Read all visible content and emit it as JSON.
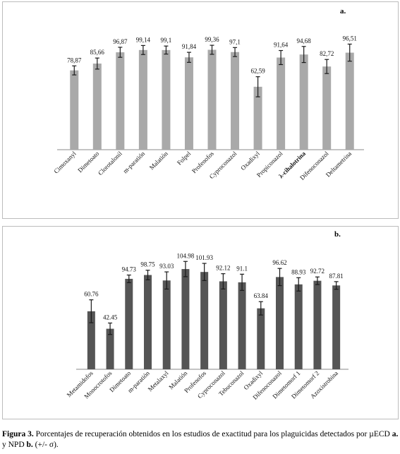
{
  "chart_data": [
    {
      "type": "bar",
      "panel_label": "a.",
      "categories": [
        "Cimoxanyl",
        "Dimetoato",
        "Clorotalonil",
        "m-paratión",
        "Malatión",
        "Folpel",
        "Profenofos",
        "Cyproconazol",
        "Oxadixyl",
        "Propiconazol",
        "λ-cihalotrina",
        "Difenoconazol",
        "Deltametrina"
      ],
      "values": [
        78.87,
        85.66,
        96.87,
        99.14,
        99.1,
        91.84,
        99.36,
        97.1,
        62.59,
        91.64,
        94.68,
        82.72,
        96.51
      ],
      "value_labels": [
        "78,87",
        "85,66",
        "96,87",
        "99,14",
        "99,1",
        "91,84",
        "99,36",
        "97,1",
        "62,59",
        "91,64",
        "94,68",
        "82,72",
        "96,51"
      ],
      "errors": [
        4.5,
        5.5,
        5.0,
        4.5,
        4.0,
        5.0,
        4.5,
        4.5,
        10.0,
        7.0,
        8.0,
        7.0,
        8.5
      ],
      "bold_category": "λ-cihalotrina",
      "ylim": [
        0,
        125
      ],
      "bar_color": "#a9a9a9",
      "axis_color": "#8a8a8a",
      "error_color": "#1a1a1a",
      "grid": false
    },
    {
      "type": "bar",
      "panel_label": "b.",
      "categories": [
        "Metamidofos",
        "Monocrotofos",
        "Dimetoato",
        "m-paratión",
        "Metalaxyl",
        "Malatión",
        "Profenofos",
        "Cyproconazol",
        "Tebuconazol",
        "Oxadixyl",
        "Difenoconazol",
        "Dimetomorf 1",
        "Dimetomorf 2",
        "Azoxistrobina"
      ],
      "values": [
        60.76,
        42.45,
        94.73,
        98.75,
        93.03,
        104.98,
        101.93,
        92.12,
        91.1,
        63.84,
        96.62,
        88.93,
        92.72,
        87.81
      ],
      "value_labels": [
        "60.76",
        "42.45",
        "94.73",
        "98.75",
        "93.03",
        "104.98",
        "101.93",
        "92.12",
        "91.1",
        "63.84",
        "96.62",
        "88.93",
        "92.72",
        "87.81"
      ],
      "errors": [
        12.0,
        6.0,
        4.0,
        5.0,
        9.0,
        8.0,
        9.0,
        8.0,
        8.5,
        7.0,
        9.0,
        7.0,
        4.0,
        4.0
      ],
      "ylim": [
        0,
        125
      ],
      "bar_color": "#555555",
      "axis_color": "#8a8a8a",
      "error_color": "#1a1a1a",
      "grid": false
    }
  ],
  "caption": {
    "figure_label": "Figura 3.",
    "text_1": " Porcentajes de recuperación obtenidos en los estudios de exactitud para los plaguicidas detectados por µECD ",
    "a_label": "a.",
    "text_2": " y NPD ",
    "b_label": "b.",
    "text_3": " (+/- σ)."
  }
}
